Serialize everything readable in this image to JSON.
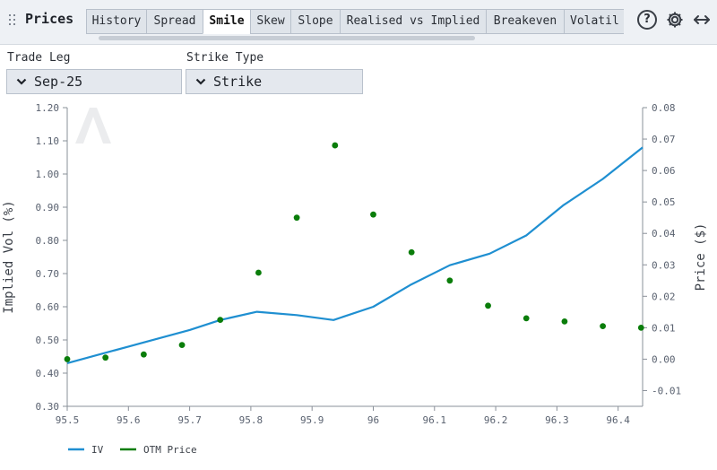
{
  "header": {
    "title": "Prices",
    "tabs": [
      {
        "label": "History",
        "active": false
      },
      {
        "label": "Spread",
        "active": false
      },
      {
        "label": "Smile",
        "active": true
      },
      {
        "label": "Skew",
        "active": false
      },
      {
        "label": "Slope",
        "active": false
      },
      {
        "label": "Realised vs Implied",
        "active": false
      },
      {
        "label": "Breakeven",
        "active": false
      },
      {
        "label": "Volatil",
        "active": false
      }
    ],
    "help_glyph": "?"
  },
  "controls": {
    "trade_leg": {
      "label": "Trade Leg",
      "value": "Sep-25"
    },
    "strike_type": {
      "label": "Strike Type",
      "value": "Strike"
    }
  },
  "chart_data": {
    "type": "line",
    "xlim": [
      95.5,
      96.44
    ],
    "x_ticks": [
      "95.5",
      "95.6",
      "95.7",
      "95.8",
      "95.9",
      "96",
      "96.1",
      "96.2",
      "96.3",
      "96.4"
    ],
    "x_tick_values": [
      95.5,
      95.6,
      95.7,
      95.8,
      95.9,
      96.0,
      96.1,
      96.2,
      96.3,
      96.4
    ],
    "ylabel": "Implied Vol (%)",
    "ylim": [
      0.3,
      1.2
    ],
    "y_ticks": [
      "0.30",
      "0.40",
      "0.50",
      "0.60",
      "0.70",
      "0.80",
      "0.90",
      "1.00",
      "1.10",
      "1.20"
    ],
    "y2label": "Price ($)",
    "y2lim": [
      -0.015,
      0.08
    ],
    "y2_ticks": [
      "-0.01",
      "0.00",
      "0.01",
      "0.02",
      "0.03",
      "0.04",
      "0.05",
      "0.06",
      "0.07",
      "0.08"
    ],
    "legend_position": "bottom-left",
    "grid": false,
    "series": [
      {
        "name": "IV",
        "axis": "left",
        "kind": "line",
        "color": "#1f8fd1",
        "x": [
          95.5,
          95.6,
          95.7,
          95.75,
          95.81,
          95.875,
          95.935,
          96.0,
          96.06,
          96.125,
          96.19,
          96.25,
          96.31,
          96.375,
          96.44
        ],
        "y": [
          0.43,
          0.48,
          0.53,
          0.56,
          0.585,
          0.575,
          0.56,
          0.6,
          0.665,
          0.725,
          0.76,
          0.815,
          0.905,
          0.985,
          1.08
        ]
      },
      {
        "name": "OTM Price",
        "axis": "right",
        "kind": "scatter",
        "color": "#0a7d0a",
        "x": [
          95.5,
          95.5625,
          95.625,
          95.6875,
          95.75,
          95.8125,
          95.875,
          95.9375,
          96.0,
          96.0625,
          96.125,
          96.1875,
          96.25,
          96.3125,
          96.375,
          96.4375
        ],
        "y": [
          0.0,
          0.0005,
          0.0015,
          0.0045,
          0.0125,
          0.0275,
          0.045,
          0.068,
          0.046,
          0.034,
          0.025,
          0.017,
          0.013,
          0.012,
          0.0105,
          0.01
        ]
      }
    ]
  }
}
